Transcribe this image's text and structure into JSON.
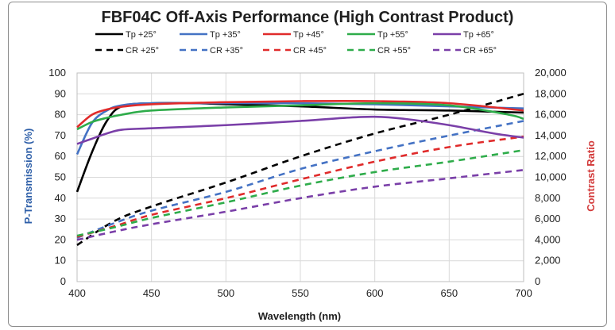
{
  "chart_data": {
    "type": "line",
    "title": "FBF04C Off-Axis Performance (High Contrast Product)",
    "xlabel": "Wavelength (nm)",
    "ylabel_left": "P-Transmission (%)",
    "ylabel_right": "Contrast Ratio",
    "xlim": [
      400,
      700
    ],
    "ylim_left": [
      0,
      100
    ],
    "ylim_right": [
      0,
      20000
    ],
    "x_ticks": [
      400,
      450,
      500,
      550,
      600,
      650,
      700
    ],
    "y_left_ticks": [
      0,
      10,
      20,
      30,
      40,
      50,
      60,
      70,
      80,
      90,
      100
    ],
    "y_right_ticks": [
      "0",
      "2,000",
      "4,000",
      "6,000",
      "8,000",
      "10,000",
      "12,000",
      "14,000",
      "16,000",
      "18,000",
      "20,000"
    ],
    "grid": true,
    "legend_position": "top",
    "colors": {
      "ylabel_left": "#2e5fa8",
      "ylabel_right": "#d33a3a",
      "title": "#1f1f1f",
      "grid": "#d9d9d9"
    },
    "series": [
      {
        "name": "Tp +25°",
        "axis": "left",
        "color": "#000000",
        "dash": false,
        "x": [
          400,
          410,
          420,
          430,
          450,
          480,
          500,
          550,
          600,
          650,
          700
        ],
        "y": [
          43,
          62,
          77,
          84,
          85.5,
          85.5,
          85,
          84,
          82.5,
          82,
          81
        ]
      },
      {
        "name": "Tp +35°",
        "axis": "left",
        "color": "#4472c4",
        "dash": false,
        "x": [
          400,
          410,
          420,
          430,
          450,
          500,
          550,
          600,
          650,
          700
        ],
        "y": [
          61,
          76,
          82,
          84.5,
          85.5,
          85.5,
          85.5,
          85,
          84,
          83
        ]
      },
      {
        "name": "Tp +45°",
        "axis": "left",
        "color": "#e02b2b",
        "dash": false,
        "x": [
          400,
          410,
          420,
          430,
          450,
          500,
          550,
          600,
          650,
          700
        ],
        "y": [
          74,
          80,
          82.5,
          83.8,
          85,
          86,
          86.5,
          86.5,
          85.5,
          82
        ]
      },
      {
        "name": "Tp +55°",
        "axis": "left",
        "color": "#2eac4a",
        "dash": false,
        "x": [
          400,
          410,
          420,
          430,
          450,
          500,
          550,
          600,
          650,
          690,
          700
        ],
        "y": [
          73,
          76.5,
          78.5,
          80,
          82,
          83.5,
          84.5,
          85.5,
          84.5,
          80,
          78
        ]
      },
      {
        "name": "Tp +65°",
        "axis": "left",
        "color": "#7a3fa8",
        "dash": false,
        "x": [
          400,
          410,
          420,
          430,
          450,
          500,
          550,
          580,
          600,
          620,
          650,
          680,
          700
        ],
        "y": [
          66,
          68.5,
          71,
          72.8,
          73.5,
          75,
          77,
          78.5,
          79,
          78,
          75,
          71,
          69
        ]
      },
      {
        "name": "CR +25°",
        "axis": "right",
        "color": "#000000",
        "dash": true,
        "x": [
          400,
          425,
          450,
          500,
          550,
          600,
          650,
          700
        ],
        "y": [
          3500,
          5800,
          7200,
          9500,
          12000,
          14200,
          16000,
          18000
        ]
      },
      {
        "name": "CR +35°",
        "axis": "right",
        "color": "#4472c4",
        "dash": true,
        "x": [
          400,
          425,
          450,
          500,
          550,
          600,
          650,
          700
        ],
        "y": [
          4200,
          5600,
          6800,
          8600,
          10800,
          12500,
          14000,
          15400
        ]
      },
      {
        "name": "CR +45°",
        "axis": "right",
        "color": "#e02b2b",
        "dash": true,
        "x": [
          400,
          425,
          450,
          500,
          550,
          600,
          650,
          700
        ],
        "y": [
          4300,
          5300,
          6400,
          8000,
          9800,
          11500,
          12900,
          13900
        ]
      },
      {
        "name": "CR +55°",
        "axis": "right",
        "color": "#2eac4a",
        "dash": true,
        "x": [
          400,
          425,
          450,
          500,
          550,
          600,
          650,
          700
        ],
        "y": [
          4400,
          5200,
          6100,
          7600,
          9200,
          10500,
          11500,
          12600
        ]
      },
      {
        "name": "CR +65°",
        "axis": "right",
        "color": "#7a3fa8",
        "dash": true,
        "x": [
          400,
          425,
          450,
          500,
          550,
          600,
          650,
          700
        ],
        "y": [
          4000,
          4800,
          5500,
          6700,
          8000,
          9100,
          9900,
          10700
        ]
      }
    ]
  }
}
